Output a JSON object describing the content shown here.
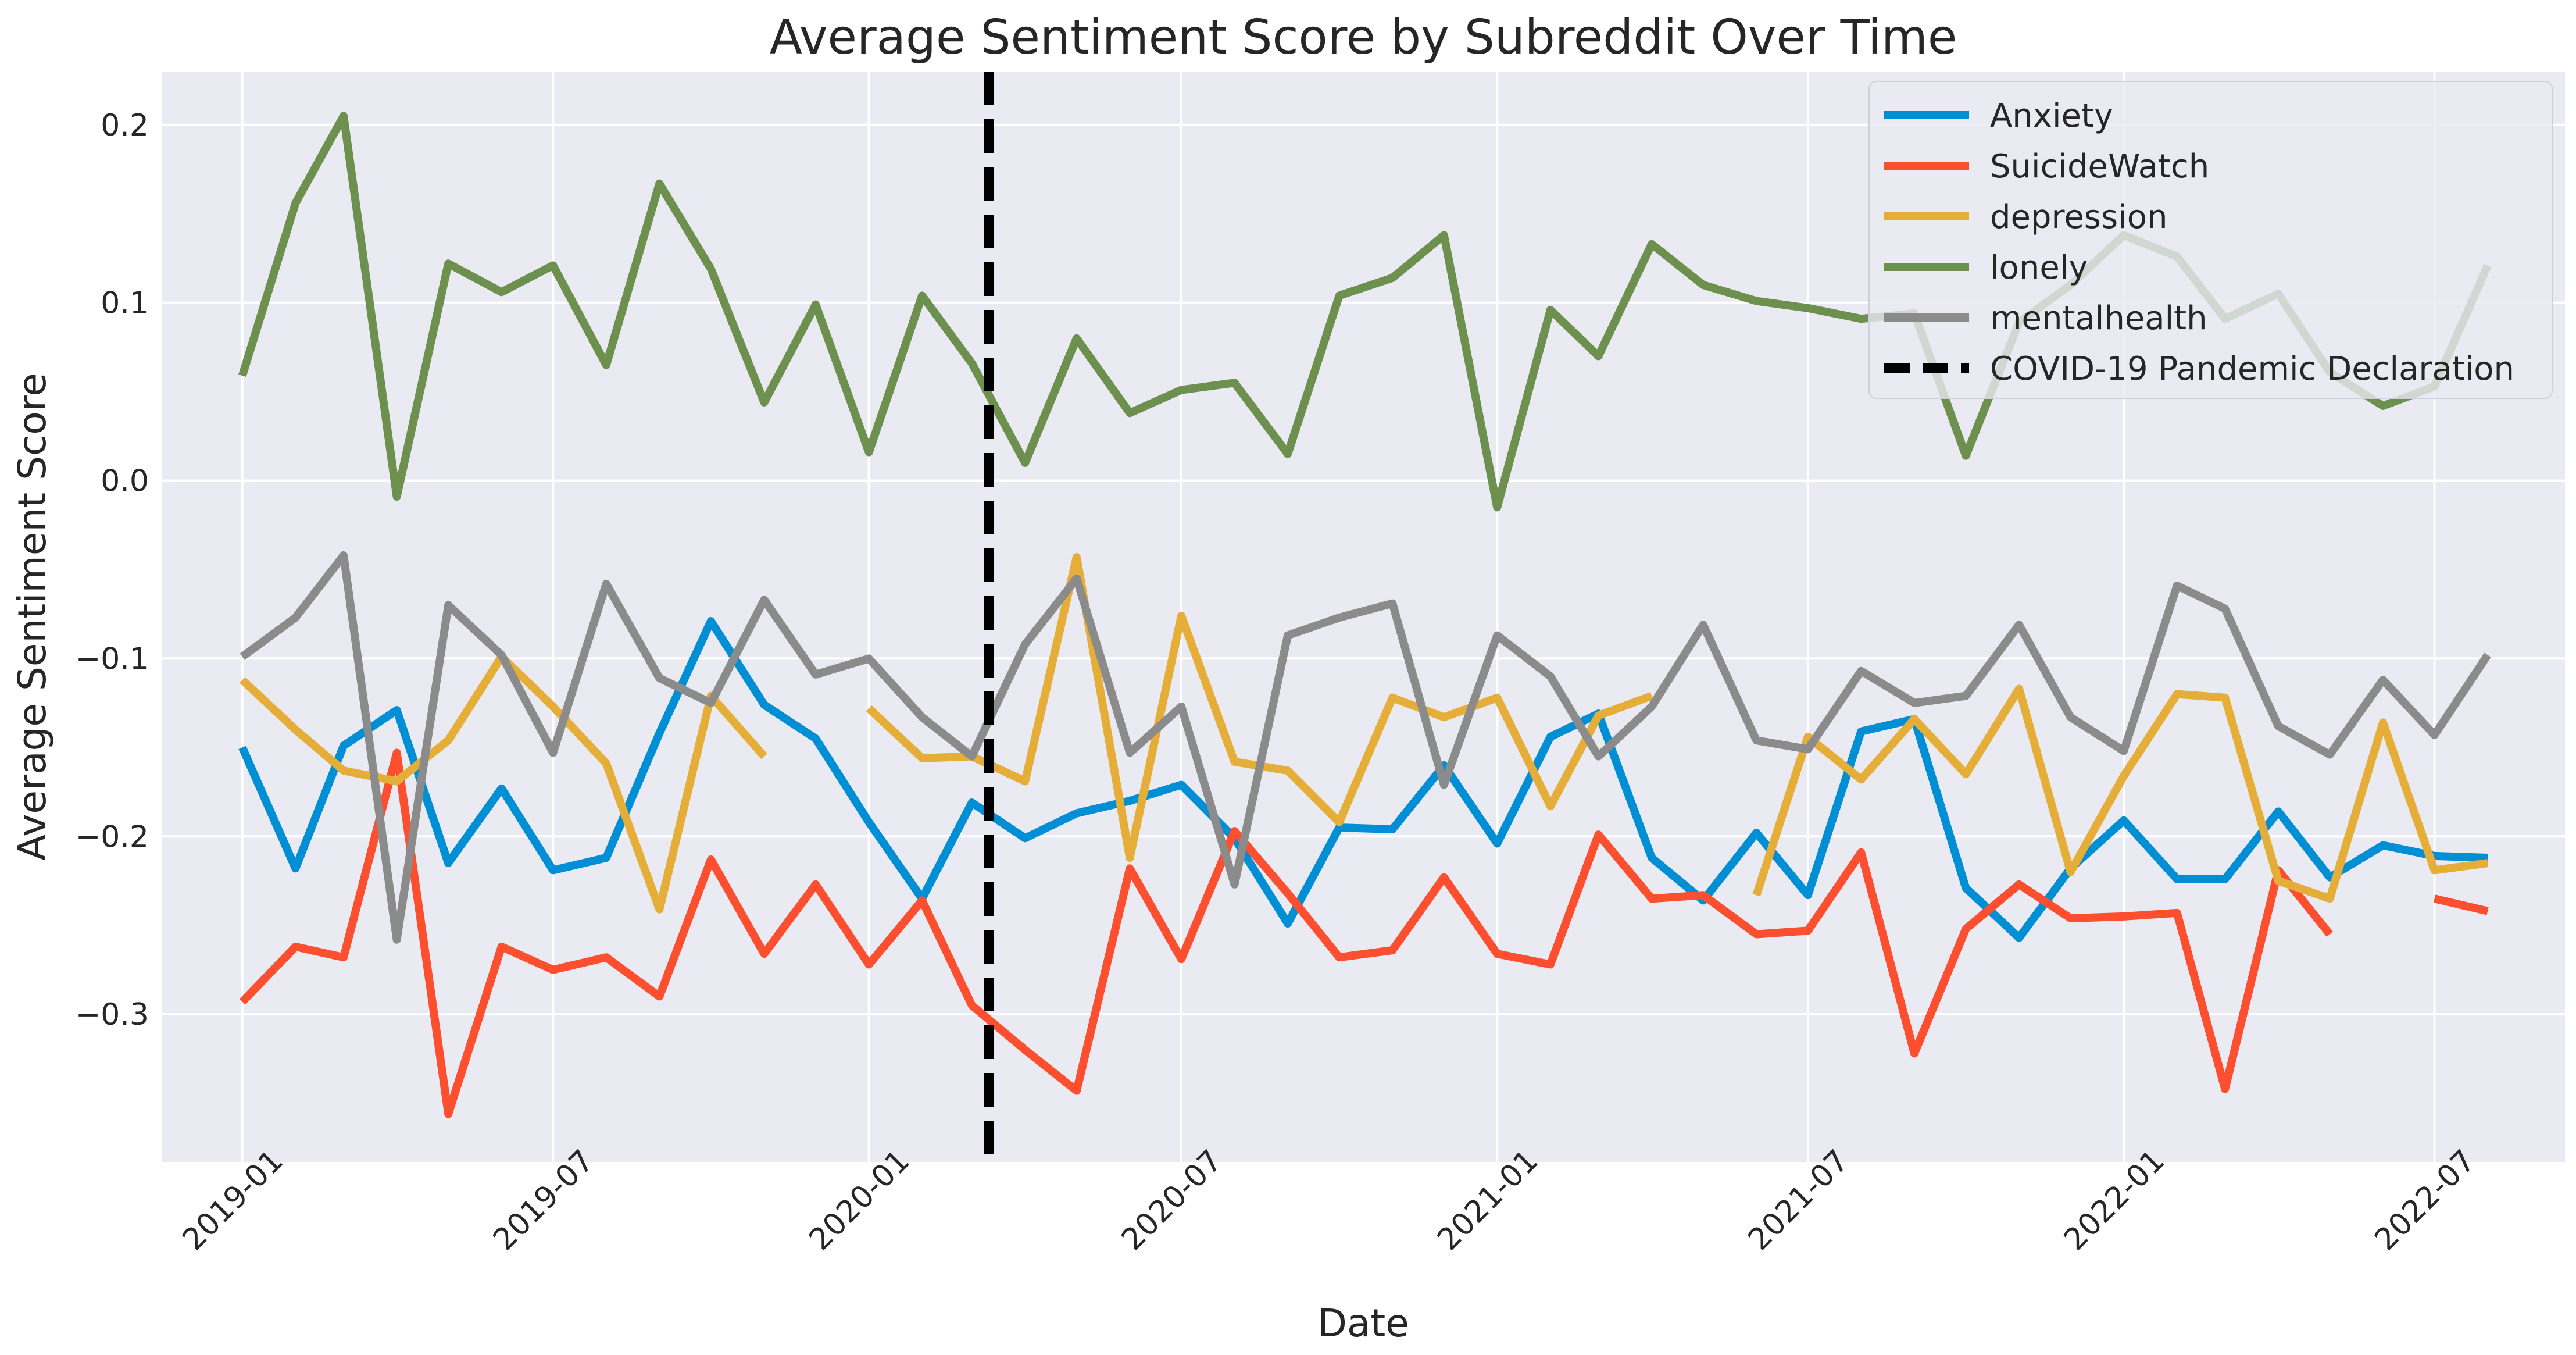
{
  "chart_data": {
    "type": "line",
    "title": "Average Sentiment Score by Subreddit Over Time",
    "xlabel": "Date",
    "ylabel": "Average Sentiment Score",
    "x": [
      "2019-01",
      "2019-02",
      "2019-03",
      "2019-04",
      "2019-05",
      "2019-06",
      "2019-07",
      "2019-08",
      "2019-09",
      "2019-10",
      "2019-11",
      "2019-12",
      "2020-01",
      "2020-02",
      "2020-03",
      "2020-04",
      "2020-05",
      "2020-06",
      "2020-07",
      "2020-08",
      "2020-09",
      "2020-10",
      "2020-11",
      "2020-12",
      "2021-01",
      "2021-02",
      "2021-03",
      "2021-04",
      "2021-05",
      "2021-06",
      "2021-07",
      "2021-08",
      "2021-09",
      "2021-10",
      "2021-11",
      "2021-12",
      "2022-01",
      "2022-02",
      "2022-03",
      "2022-04",
      "2022-05",
      "2022-06",
      "2022-07",
      "2022-08"
    ],
    "xticks": [
      "2019-01",
      "2019-07",
      "2020-01",
      "2020-07",
      "2021-01",
      "2021-07",
      "2022-01",
      "2022-07"
    ],
    "yticks": [
      0.2,
      0.1,
      0.0,
      -0.1,
      -0.2,
      -0.3
    ],
    "ytick_labels": [
      "0.2",
      "0.1",
      "0.0",
      "−0.1",
      "−0.2",
      "−0.3"
    ],
    "xlim": [
      "2018-11-15",
      "2022-09-15"
    ],
    "ylim": [
      -0.383,
      0.23
    ],
    "grid": true,
    "legend_position": "top-right",
    "series": [
      {
        "name": "Anxiety",
        "color": "#008fd5",
        "values": [
          -0.15,
          -0.218,
          -0.149,
          -0.129,
          -0.215,
          -0.173,
          -0.219,
          -0.212,
          -0.142,
          -0.079,
          -0.126,
          -0.145,
          -0.192,
          -0.235,
          -0.181,
          -0.201,
          -0.187,
          -0.18,
          -0.171,
          -0.201,
          -0.249,
          -0.195,
          -0.196,
          -0.16,
          -0.204,
          -0.144,
          -0.131,
          -0.212,
          -0.236,
          -0.198,
          -0.233,
          -0.141,
          -0.134,
          -0.229,
          -0.257,
          -0.218,
          -0.191,
          -0.224,
          -0.224,
          -0.186,
          -0.223,
          -0.205,
          -0.211,
          -0.212
        ]
      },
      {
        "name": "SuicideWatch",
        "color": "#fc4f30",
        "values": [
          -0.293,
          -0.262,
          -0.268,
          -0.153,
          -0.356,
          -0.262,
          -0.275,
          -0.268,
          -0.29,
          -0.213,
          -0.266,
          -0.227,
          -0.272,
          -0.236,
          -0.295,
          -0.32,
          -0.343,
          -0.218,
          -0.269,
          -0.197,
          -0.232,
          -0.268,
          -0.264,
          -0.223,
          -0.266,
          -0.272,
          -0.199,
          -0.235,
          -0.233,
          -0.255,
          -0.253,
          -0.209,
          -0.322,
          -0.252,
          -0.227,
          -0.246,
          -0.245,
          -0.243,
          -0.342,
          -0.219,
          -0.255,
          null,
          -0.235,
          -0.242
        ]
      },
      {
        "name": "depression",
        "color": "#e5ae38",
        "values": [
          -0.112,
          -0.14,
          -0.163,
          -0.169,
          -0.146,
          -0.099,
          -0.127,
          -0.159,
          -0.241,
          -0.121,
          -0.155,
          null,
          -0.128,
          -0.156,
          -0.155,
          -0.169,
          -0.043,
          -0.212,
          -0.076,
          -0.158,
          -0.163,
          -0.192,
          -0.122,
          -0.133,
          -0.122,
          -0.183,
          -0.132,
          -0.121,
          null,
          -0.233,
          -0.144,
          -0.168,
          -0.134,
          -0.165,
          -0.117,
          -0.22,
          -0.166,
          -0.12,
          -0.122,
          -0.225,
          -0.235,
          -0.136,
          -0.219,
          -0.215
        ]
      },
      {
        "name": "lonely",
        "color": "#6d904f",
        "values": [
          0.059,
          0.156,
          0.205,
          -0.009,
          0.122,
          0.106,
          0.121,
          0.065,
          0.167,
          0.119,
          0.044,
          0.099,
          0.016,
          0.104,
          0.066,
          0.01,
          0.08,
          0.038,
          0.051,
          0.055,
          0.015,
          0.104,
          0.114,
          0.138,
          -0.015,
          0.096,
          0.07,
          0.133,
          0.11,
          0.101,
          0.097,
          0.091,
          0.094,
          0.014,
          0.089,
          0.11,
          0.138,
          0.126,
          0.091,
          0.105,
          0.061,
          0.042,
          0.053,
          0.121
        ]
      },
      {
        "name": "mentalhealth",
        "color": "#8b8b8b",
        "values": [
          -0.099,
          -0.077,
          -0.042,
          -0.258,
          -0.07,
          -0.098,
          -0.153,
          -0.058,
          -0.111,
          -0.125,
          -0.067,
          -0.109,
          -0.1,
          -0.133,
          -0.155,
          -0.092,
          -0.055,
          -0.153,
          -0.127,
          -0.227,
          -0.087,
          -0.077,
          -0.069,
          -0.171,
          -0.087,
          -0.11,
          -0.155,
          -0.127,
          -0.081,
          -0.146,
          -0.151,
          -0.107,
          -0.125,
          -0.121,
          -0.081,
          -0.133,
          -0.152,
          -0.059,
          -0.072,
          -0.138,
          -0.154,
          -0.112,
          -0.143,
          -0.098
        ]
      }
    ],
    "annotations": [
      {
        "type": "vline",
        "x": "2020-03-11",
        "label": "COVID-19 Pandemic Declaration",
        "color": "#000000",
        "style": "dashed"
      }
    ]
  }
}
